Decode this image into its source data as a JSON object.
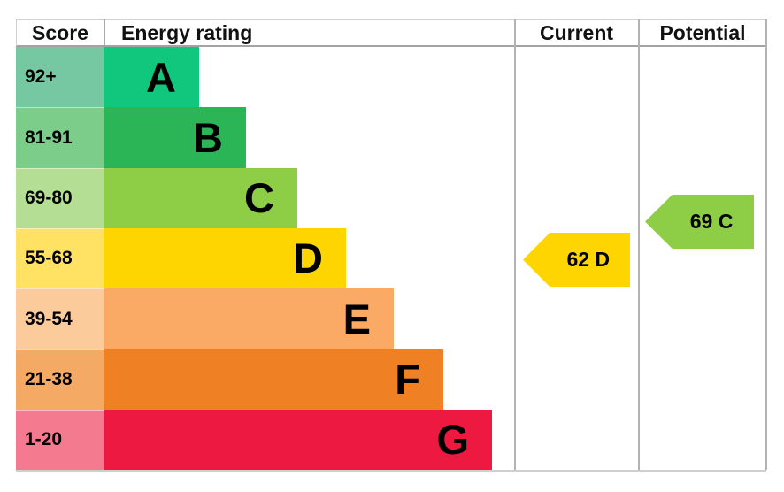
{
  "header": {
    "score": "Score",
    "energy_rating": "Energy rating",
    "current": "Current",
    "potential": "Potential"
  },
  "bands": [
    {
      "letter": "A",
      "score": "92+",
      "color": "#11c67d",
      "score_bg": "#76c8a2"
    },
    {
      "letter": "B",
      "score": "81-91",
      "color": "#2bb557",
      "score_bg": "#7ccc8a"
    },
    {
      "letter": "C",
      "score": "69-80",
      "color": "#8dce46",
      "score_bg": "#b3de93"
    },
    {
      "letter": "D",
      "score": "55-68",
      "color": "#ffd500",
      "score_bg": "#ffe264"
    },
    {
      "letter": "E",
      "score": "39-54",
      "color": "#fbaa65",
      "score_bg": "#fccb9c"
    },
    {
      "letter": "F",
      "score": "21-38",
      "color": "#ef8023",
      "score_bg": "#f4aa64"
    },
    {
      "letter": "G",
      "score": "1-20",
      "color": "#ed1941",
      "score_bg": "#f47a90"
    }
  ],
  "current": {
    "label": "62 D",
    "value": 62,
    "band": "D",
    "color": "#ffd500"
  },
  "potential": {
    "label": "69 C",
    "value": 69,
    "band": "C",
    "color": "#8dce46"
  },
  "chart_data": {
    "type": "bar",
    "title": "Energy rating",
    "columns": [
      "Score",
      "Energy rating",
      "Current",
      "Potential"
    ],
    "categories": [
      "A",
      "B",
      "C",
      "D",
      "E",
      "F",
      "G"
    ],
    "score_ranges": [
      "92+",
      "81-91",
      "69-80",
      "55-68",
      "39-54",
      "21-38",
      "1-20"
    ],
    "band_colors": [
      "#11c67d",
      "#2bb557",
      "#8dce46",
      "#ffd500",
      "#fbaa65",
      "#ef8023",
      "#ed1941"
    ],
    "bar_relative_widths": [
      0.23,
      0.35,
      0.47,
      0.59,
      0.71,
      0.83,
      0.95
    ],
    "current": {
      "score": 62,
      "band": "D"
    },
    "potential": {
      "score": 69,
      "band": "C"
    },
    "legend_position": "none",
    "grid": false
  }
}
